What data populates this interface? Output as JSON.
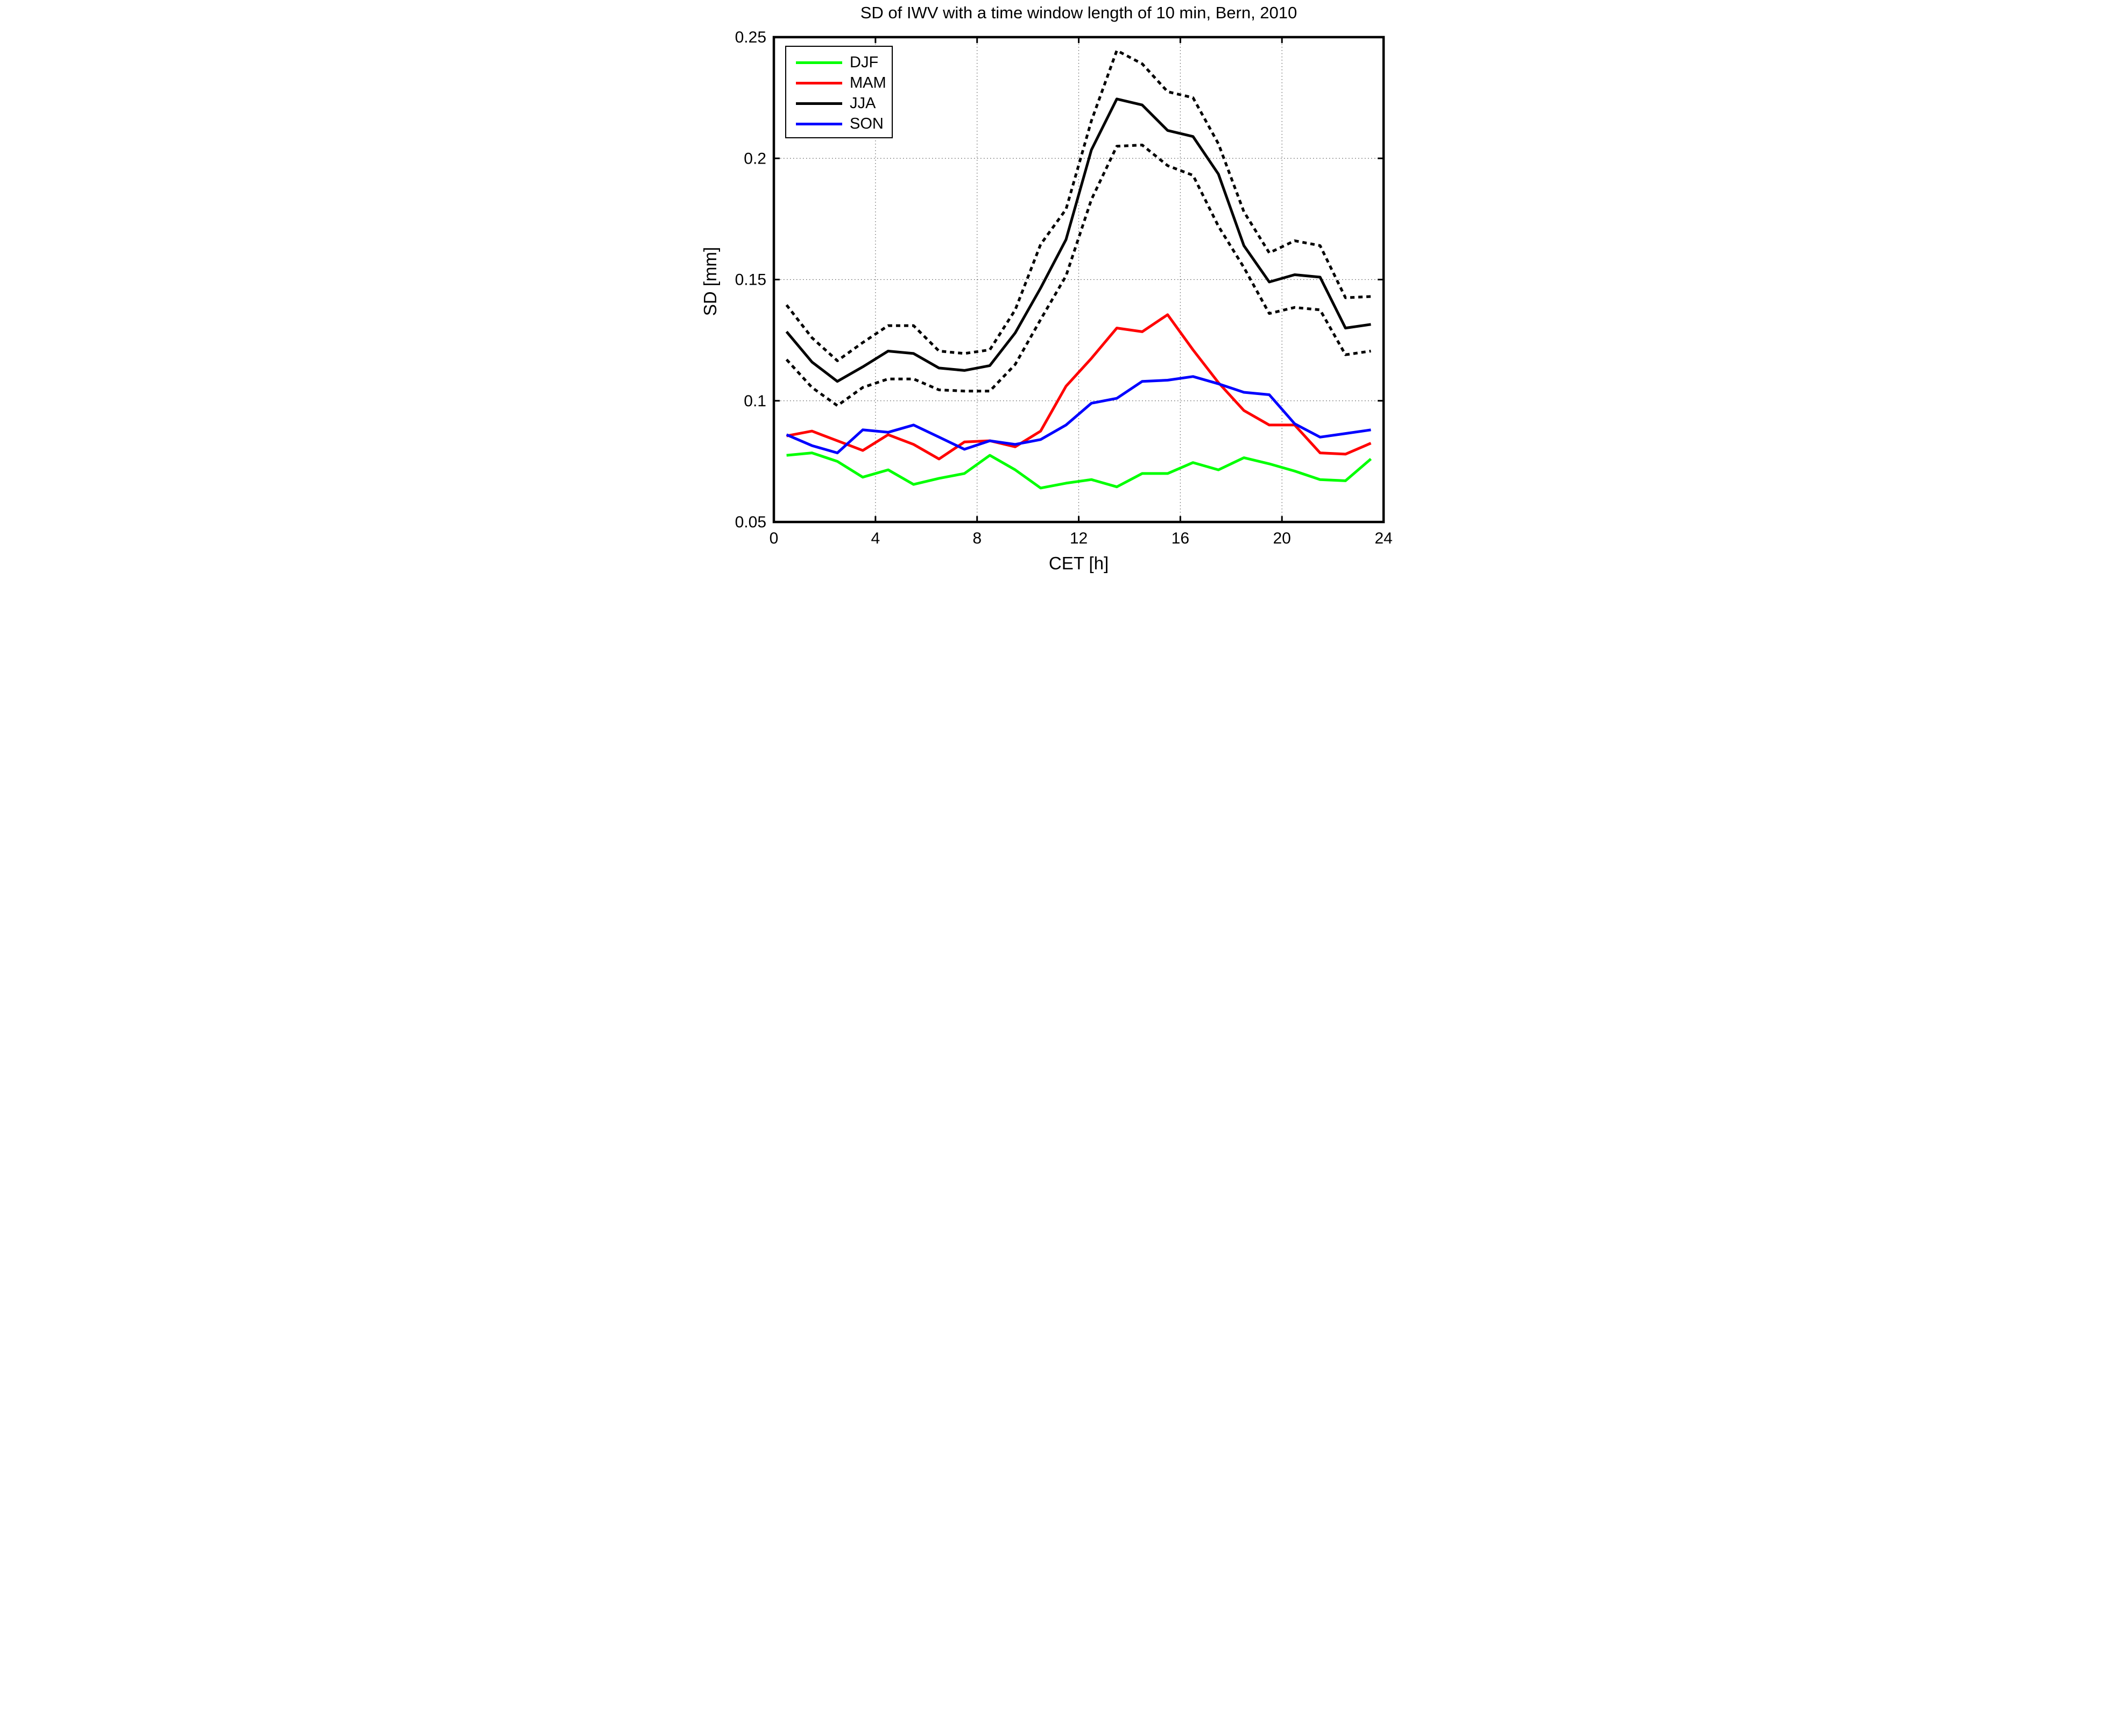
{
  "title": "SD of IWV with a time window length of 10 min, Bern, 2010",
  "x_axis": {
    "label": "CET [h]",
    "tick_labels": [
      "0",
      "4",
      "8",
      "12",
      "16",
      "20",
      "24"
    ],
    "tick_values": [
      0,
      4,
      8,
      12,
      16,
      20,
      24
    ]
  },
  "y_axis": {
    "label": "SD [mm]",
    "tick_labels": [
      "0.05",
      "0.1",
      "0.15",
      "0.2",
      "0.25"
    ],
    "tick_values": [
      0.05,
      0.1,
      0.15,
      0.2,
      0.25
    ]
  },
  "legend": [
    {
      "label": "DJF",
      "color": "#00ff00",
      "style": "solid"
    },
    {
      "label": "MAM",
      "color": "#ff0000",
      "style": "solid"
    },
    {
      "label": "JJA",
      "color": "#000000",
      "style": "solid"
    },
    {
      "label": "SON",
      "color": "#0000ff",
      "style": "solid"
    }
  ],
  "chart_data": {
    "type": "line",
    "title": "SD of IWV with a time window length of 10 min, Bern, 2010",
    "xlabel": "CET [h]",
    "ylabel": "SD [mm]",
    "xlim": [
      0,
      24
    ],
    "ylim": [
      0.05,
      0.25
    ],
    "grid": true,
    "legend_position": "upper left",
    "x": [
      0.5,
      1.5,
      2.5,
      3.5,
      4.5,
      5.5,
      6.5,
      7.5,
      8.5,
      9.5,
      10.5,
      11.5,
      12.5,
      13.5,
      14.5,
      15.5,
      16.5,
      17.5,
      18.5,
      19.5,
      20.5,
      21.5,
      22.5,
      23.5
    ],
    "series": [
      {
        "name": "JJA_upper_dotted_bound",
        "color": "#000000",
        "style": "dotted",
        "values": [
          0.1395,
          0.126,
          0.1165,
          0.124,
          0.131,
          0.131,
          0.1205,
          0.1195,
          0.121,
          0.1375,
          0.1645,
          0.179,
          0.2155,
          0.2445,
          0.239,
          0.2275,
          0.225,
          0.206,
          0.178,
          0.161,
          0.166,
          0.164,
          0.1425,
          0.143
        ]
      },
      {
        "name": "JJA_lower_dotted_bound",
        "color": "#000000",
        "style": "dotted",
        "values": [
          0.117,
          0.1055,
          0.098,
          0.1055,
          0.109,
          0.109,
          0.1045,
          0.104,
          0.104,
          0.115,
          0.1335,
          0.1515,
          0.183,
          0.205,
          0.2055,
          0.197,
          0.193,
          0.172,
          0.155,
          0.136,
          0.1385,
          0.1375,
          0.119,
          0.1205
        ]
      },
      {
        "name": "JJA",
        "color": "#000000",
        "style": "solid",
        "values": [
          0.1285,
          0.116,
          0.108,
          0.114,
          0.1205,
          0.1195,
          0.1135,
          0.1125,
          0.1145,
          0.128,
          0.1465,
          0.1665,
          0.2035,
          0.2245,
          0.222,
          0.2115,
          0.209,
          0.1935,
          0.164,
          0.149,
          0.152,
          0.151,
          0.13,
          0.1315
        ]
      },
      {
        "name": "DJF",
        "color": "#00ff00",
        "style": "solid",
        "values": [
          0.0775,
          0.0785,
          0.075,
          0.0685,
          0.0715,
          0.0655,
          0.068,
          0.07,
          0.0775,
          0.0715,
          0.064,
          0.066,
          0.0675,
          0.0645,
          0.07,
          0.07,
          0.0745,
          0.0715,
          0.0765,
          0.074,
          0.071,
          0.0675,
          0.067,
          0.076
        ]
      },
      {
        "name": "MAM",
        "color": "#ff0000",
        "style": "solid",
        "values": [
          0.0855,
          0.0875,
          0.0835,
          0.0795,
          0.086,
          0.082,
          0.076,
          0.083,
          0.0835,
          0.081,
          0.0875,
          0.106,
          0.1175,
          0.13,
          0.1285,
          0.1355,
          0.121,
          0.1075,
          0.096,
          0.09,
          0.09,
          0.0785,
          0.078,
          0.0825
        ]
      },
      {
        "name": "SON",
        "color": "#0000ff",
        "style": "solid",
        "values": [
          0.086,
          0.0815,
          0.0785,
          0.088,
          0.087,
          0.09,
          0.085,
          0.08,
          0.0835,
          0.082,
          0.084,
          0.09,
          0.099,
          0.101,
          0.108,
          0.1085,
          0.11,
          0.107,
          0.1035,
          0.1025,
          0.0905,
          0.085,
          0.0865,
          0.088
        ]
      }
    ]
  }
}
